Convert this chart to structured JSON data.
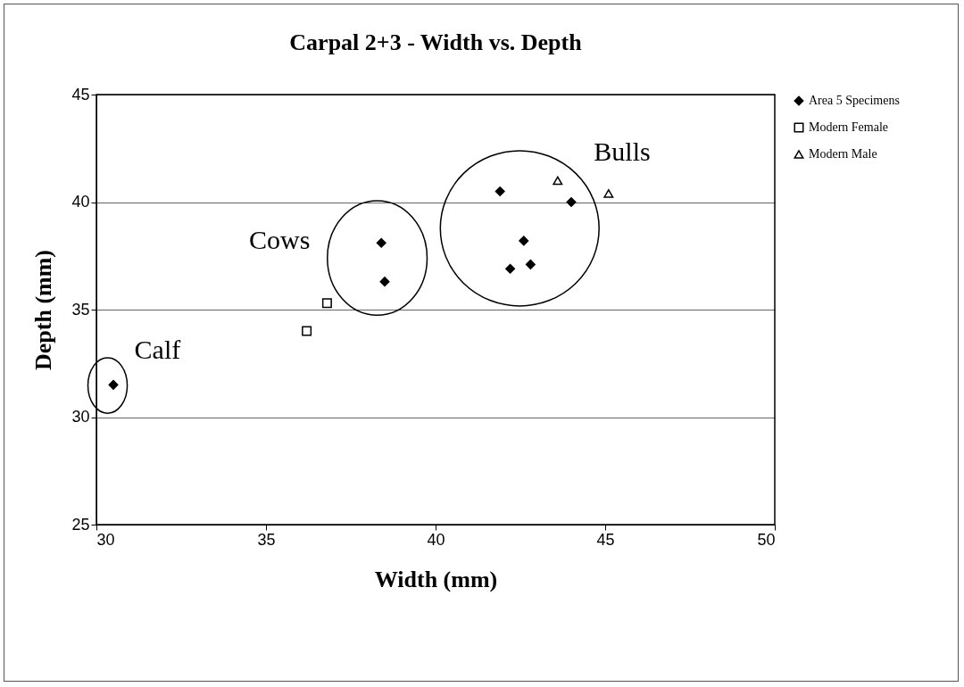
{
  "chart_data": {
    "type": "scatter",
    "title": "Carpal 2+3 - Width vs. Depth",
    "xlabel": "Width (mm)",
    "ylabel": "Depth (mm)",
    "xlim": [
      30,
      50
    ],
    "xticks": [
      30,
      35,
      40,
      45,
      50
    ],
    "ylim": [
      25,
      45
    ],
    "yticks": [
      25,
      30,
      35,
      40,
      45
    ],
    "grid": "y",
    "legend": "right",
    "series": [
      {
        "name": "Area 5 Specimens",
        "color": "#000000",
        "marker": "diamond",
        "x": [
          30.5,
          38.4,
          38.5,
          41.9,
          44.0,
          42.6,
          42.2,
          42.8
        ],
        "values": [
          31.5,
          38.1,
          36.3,
          40.5,
          40.0,
          38.2,
          36.9,
          37.1
        ]
      },
      {
        "name": "Modern Female",
        "color": "#000000",
        "marker": "square",
        "x": [
          36.2,
          36.8
        ],
        "values": [
          34.0,
          35.3
        ]
      },
      {
        "name": "Modern Male",
        "color": "#000000",
        "marker": "triangle",
        "x": [
          43.6,
          45.1
        ],
        "values": [
          41.0,
          40.4
        ]
      }
    ],
    "annotations": [
      "Calf",
      "Cows",
      "Bulls"
    ]
  }
}
